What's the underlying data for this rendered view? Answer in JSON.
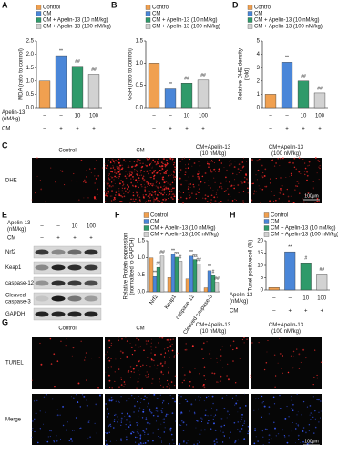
{
  "panel_labels": [
    "A",
    "B",
    "C",
    "D",
    "E",
    "F",
    "G",
    "H"
  ],
  "chart_data": [
    {
      "type": "bar",
      "ylabel": [
        "MDA (ratio to control)"
      ],
      "categories": [
        "Control",
        "CM",
        "CM + Apelin-13 (10 nM/kg)",
        "CM + Apelin-13 (100 nM/kg)"
      ],
      "colors": [
        "#f0a050",
        "#4a86d8",
        "#2f9a6a",
        "#d2d2d2"
      ],
      "values": [
        1.0,
        1.95,
        1.55,
        1.25
      ],
      "annotations": [
        null,
        "**",
        "##",
        "##"
      ],
      "ylim": [
        0,
        2.5
      ],
      "yticks": [
        {
          "value": 0,
          "label": "0.0"
        },
        {
          "value": 0.5,
          "label": "0.5"
        },
        {
          "value": 1,
          "label": "1.0"
        },
        {
          "value": 1.5,
          "label": "1.5"
        },
        {
          "value": 2,
          "label": "2.0"
        },
        {
          "value": 2.5,
          "label": "2.5"
        }
      ],
      "treatments": [
        {
          "label": [
            "Apelin-13",
            "(nM/kg)"
          ],
          "cells": [
            "–",
            "–",
            "10",
            "100"
          ]
        },
        {
          "label": [
            "CM"
          ],
          "cells": [
            "–",
            "+",
            "+",
            "+"
          ]
        }
      ]
    },
    {
      "type": "bar",
      "ylabel": [
        "GSH (ratio to control)"
      ],
      "categories": [
        "Control",
        "CM",
        "CM + Apelin-13 (10 nM/kg)",
        "CM + Apelin-13 (100 nM/kg)"
      ],
      "colors": [
        "#f0a050",
        "#4a86d8",
        "#2f9a6a",
        "#d2d2d2"
      ],
      "values": [
        1.0,
        0.42,
        0.55,
        0.62
      ],
      "annotations": [
        null,
        "**",
        "##",
        "##"
      ],
      "ylim": [
        0,
        1.5
      ],
      "yticks": [
        {
          "value": 0,
          "label": "0.0"
        },
        {
          "value": 0.5,
          "label": "0.5"
        },
        {
          "value": 1,
          "label": "1.0"
        },
        {
          "value": 1.5,
          "label": "1.5"
        }
      ],
      "treatments": [
        {
          "cells": [
            "–",
            "–",
            "10",
            "100"
          ]
        },
        {
          "cells": [
            "–",
            "+",
            "+",
            "+"
          ]
        }
      ]
    },
    {
      "type": "bar",
      "ylabel": [
        "Relative DHE density",
        "(fold)"
      ],
      "categories": [
        "Control",
        "CM",
        "CM + Apelin-13 (10 nM/kg)",
        "CM + Apelin-13 (100 nM/kg)"
      ],
      "colors": [
        "#f0a050",
        "#4a86d8",
        "#2f9a6a",
        "#d2d2d2"
      ],
      "values": [
        1.0,
        3.4,
        2.0,
        1.1
      ],
      "annotations": [
        null,
        "**",
        "##",
        "##"
      ],
      "ylim": [
        0,
        5
      ],
      "yticks": [
        0,
        1,
        2,
        3,
        4,
        5
      ],
      "treatments": [
        {
          "cells": [
            "–",
            "–",
            "10",
            "100"
          ]
        },
        {
          "cells": [
            "–",
            "+",
            "+",
            "+"
          ]
        }
      ]
    },
    {
      "type": "grouped_bar",
      "ylabel": [
        "Relative Protein expression",
        "(normalized to GAPDH)"
      ],
      "categories": [
        "Nrf2",
        "Keap1",
        "caspase-12",
        "Cleaved caspase-3"
      ],
      "series": [
        {
          "name": "Control",
          "color": "#f0a050",
          "values": [
            1.0,
            0.42,
            0.38,
            0.12
          ],
          "annotations": [
            null,
            null,
            null,
            null
          ]
        },
        {
          "name": "CM",
          "color": "#4a86d8",
          "values": [
            0.45,
            1.1,
            1.05,
            0.62
          ],
          "annotations": [
            "**",
            "**",
            "**",
            "**"
          ]
        },
        {
          "name": "CM + Apelin-13 (10 nM/kg)",
          "color": "#2f9a6a",
          "values": [
            0.72,
            1.02,
            0.95,
            0.48
          ],
          "annotations": [
            "##",
            "ns",
            "ns",
            "#"
          ]
        },
        {
          "name": "CM + Apelin-13 (100 nM/kg)",
          "color": "#d2d2d2",
          "values": [
            1.05,
            0.9,
            0.82,
            0.28
          ],
          "annotations": [
            "##",
            "#",
            "##",
            "##"
          ]
        }
      ],
      "ylim": [
        0,
        1.5
      ],
      "yticks": [
        {
          "value": 0,
          "label": "0.0"
        },
        {
          "value": 0.5,
          "label": "0.5"
        },
        {
          "value": 1,
          "label": "1.0"
        },
        {
          "value": 1.5,
          "label": "1.5"
        }
      ]
    },
    {
      "type": "bar",
      "ylabel": [
        "Tunel positivecell (%)"
      ],
      "categories": [
        "Control",
        "CM",
        "CM + Apelin-13 (10 nM/kg)",
        "CM + Apelin-13 (100 nM/kg)"
      ],
      "colors": [
        "#f0a050",
        "#4a86d8",
        "#2f9a6a",
        "#d2d2d2"
      ],
      "values": [
        1.0,
        15.5,
        11.0,
        6.5
      ],
      "annotations": [
        null,
        "**",
        "#",
        "##"
      ],
      "ylim": [
        0,
        20
      ],
      "yticks": [
        0,
        5,
        10,
        15,
        20
      ],
      "treatments": [
        {
          "label": [
            "Apelin-13",
            "(nM/kg)"
          ],
          "cells": [
            "–",
            "–",
            "10",
            "100"
          ]
        },
        {
          "label": [
            "CM"
          ],
          "cells": [
            "–",
            "+",
            "+",
            "+"
          ]
        }
      ]
    }
  ],
  "dhe_panel": {
    "columns": [
      [
        "Control"
      ],
      [
        "CM"
      ],
      [
        "CM+Apelin-13",
        "(10 nM/kg)"
      ],
      [
        "CM+Apelin-13",
        "(100 nM/kg)"
      ]
    ],
    "rows": [
      "DHE"
    ],
    "scale": "100μm"
  },
  "blot_panel": {
    "treatments": [
      {
        "label": [
          "Apelin-13",
          "(nM/kg)"
        ],
        "cells": [
          "–",
          "–",
          "10",
          "100"
        ]
      },
      {
        "label": [
          "CM"
        ],
        "cells": [
          "–",
          "+",
          "+",
          "+"
        ]
      }
    ],
    "rows": [
      [
        "Nrf2"
      ],
      [
        "Keap1"
      ],
      [
        "caspase-12"
      ],
      [
        "Cleaved",
        "caspase-3"
      ],
      [
        "GAPDH"
      ]
    ]
  },
  "tunel_panel": {
    "columns": [
      [
        "Control"
      ],
      [
        "CM"
      ],
      [
        "CM+Apelin-13",
        "(10 nM/kg)"
      ],
      [
        "CM+Apelin-13",
        "(100 nM/kg)"
      ]
    ],
    "rows": [
      "TUNEL",
      "Merge"
    ],
    "scale": "100μm"
  }
}
